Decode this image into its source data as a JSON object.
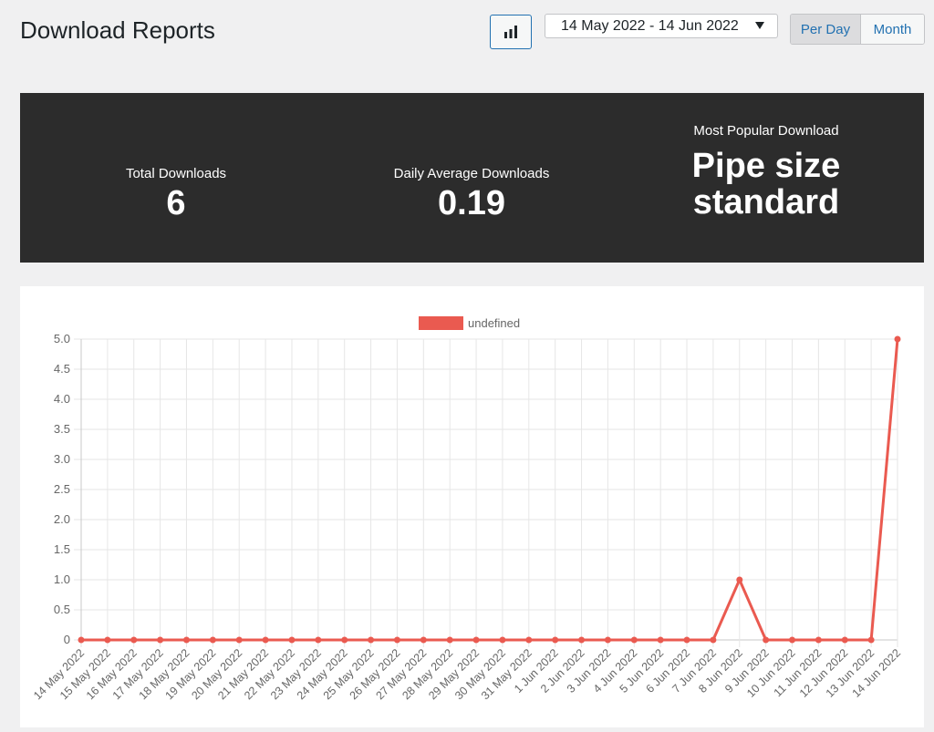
{
  "header": {
    "title": "Download Reports",
    "chart_toggle_icon": "bar-chart-icon",
    "date_range": "14 May 2022 - 14 Jun 2022",
    "period_buttons": [
      {
        "label": "Per Day",
        "active": true
      },
      {
        "label": "Month",
        "active": false
      }
    ]
  },
  "stats": {
    "total_label": "Total Downloads",
    "total_value": "6",
    "average_label": "Daily Average Downloads",
    "average_value": "0.19",
    "popular_label": "Most Popular Download",
    "popular_value_line1": "Pipe size",
    "popular_value_line2": "standard"
  },
  "colors": {
    "accent": "#2271b1",
    "panel": "#2c2c2c",
    "series": "#ea5a50"
  },
  "chart_data": {
    "type": "line",
    "legend": "undefined",
    "ylim": [
      0,
      5
    ],
    "yticks": [
      "0",
      "0.5",
      "1.0",
      "1.5",
      "2.0",
      "2.5",
      "3.0",
      "3.5",
      "4.0",
      "4.5",
      "5.0"
    ],
    "categories": [
      "14 May 2022",
      "15 May 2022",
      "16 May 2022",
      "17 May 2022",
      "18 May 2022",
      "19 May 2022",
      "20 May 2022",
      "21 May 2022",
      "22 May 2022",
      "23 May 2022",
      "24 May 2022",
      "25 May 2022",
      "26 May 2022",
      "27 May 2022",
      "28 May 2022",
      "29 May 2022",
      "30 May 2022",
      "31 May 2022",
      "1 Jun 2022",
      "2 Jun 2022",
      "3 Jun 2022",
      "4 Jun 2022",
      "5 Jun 2022",
      "6 Jun 2022",
      "7 Jun 2022",
      "8 Jun 2022",
      "9 Jun 2022",
      "10 Jun 2022",
      "11 Jun 2022",
      "12 Jun 2022",
      "13 Jun 2022",
      "14 Jun 2022"
    ],
    "series": [
      {
        "name": "undefined",
        "values": [
          0,
          0,
          0,
          0,
          0,
          0,
          0,
          0,
          0,
          0,
          0,
          0,
          0,
          0,
          0,
          0,
          0,
          0,
          0,
          0,
          0,
          0,
          0,
          0,
          0,
          1,
          0,
          0,
          0,
          0,
          0,
          5
        ]
      }
    ],
    "grid": true,
    "legend_position": "top"
  }
}
